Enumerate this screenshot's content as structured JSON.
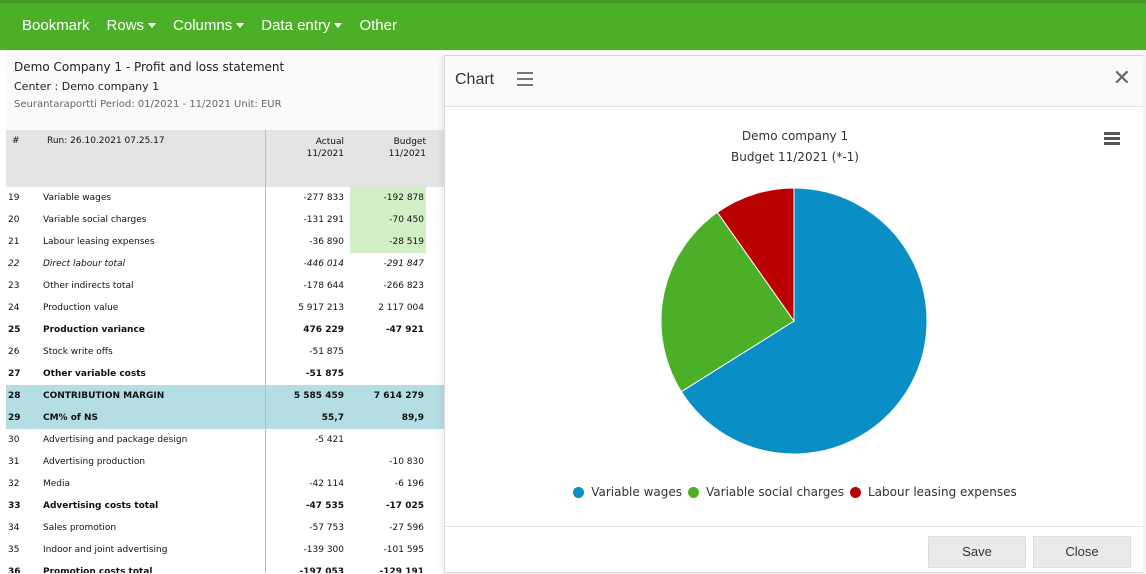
{
  "nav": {
    "items": [
      {
        "label": "Bookmark",
        "dropdown": false
      },
      {
        "label": "Rows",
        "dropdown": true
      },
      {
        "label": "Columns",
        "dropdown": true
      },
      {
        "label": "Data entry",
        "dropdown": true
      },
      {
        "label": "Other",
        "dropdown": false
      }
    ]
  },
  "report": {
    "title": "Demo Company 1 - Profit and loss statement",
    "center": "Center : Demo company 1",
    "period": "Seurantaraportti Period: 01/2021 - 11/2021 Unit: EUR",
    "header": {
      "num": "#",
      "run": "Run: 26.10.2021 07.25.17",
      "actual_line1": "Actual",
      "actual_line2": "11/2021",
      "budget_line1": "Budget",
      "budget_line2": "11/2021"
    },
    "rows": [
      {
        "num": "19",
        "name": "Variable wages",
        "actual": "-277 833",
        "budget": "-192 878",
        "style": "normal",
        "budget_green": true
      },
      {
        "num": "20",
        "name": "Variable social charges",
        "actual": "-131 291",
        "budget": "-70 450",
        "style": "normal",
        "budget_green": true
      },
      {
        "num": "21",
        "name": "Labour leasing expenses",
        "actual": "-36 890",
        "budget": "-28 519",
        "style": "normal",
        "budget_green": true
      },
      {
        "num": "22",
        "name": "Direct labour total",
        "actual": "-446 014",
        "budget": "-291 847",
        "style": "italic",
        "budget_green": false
      },
      {
        "num": "23",
        "name": "Other indirects total",
        "actual": "-178 644",
        "budget": "-266 823",
        "style": "normal",
        "budget_green": false
      },
      {
        "num": "24",
        "name": "Production value",
        "actual": "5 917 213",
        "budget": "2 117 004",
        "style": "normal",
        "budget_green": false
      },
      {
        "num": "25",
        "name": "Production variance",
        "actual": "476 229",
        "budget": "-47 921",
        "style": "bold",
        "budget_green": false
      },
      {
        "num": "26",
        "name": "Stock write offs",
        "actual": "-51 875",
        "budget": "",
        "style": "normal",
        "budget_green": false
      },
      {
        "num": "27",
        "name": "Other variable costs",
        "actual": "-51 875",
        "budget": "",
        "style": "bold",
        "budget_green": false
      },
      {
        "num": "28",
        "name": "CONTRIBUTION MARGIN",
        "actual": "5 585 459",
        "budget": "7 614 279",
        "style": "highlight",
        "budget_green": false
      },
      {
        "num": "29",
        "name": "CM% of NS",
        "actual": "55,7",
        "budget": "89,9",
        "style": "highlight",
        "budget_green": false
      },
      {
        "num": "30",
        "name": "Advertising and package design",
        "actual": "-5 421",
        "budget": "",
        "style": "normal",
        "budget_green": false
      },
      {
        "num": "31",
        "name": "Advertising production",
        "actual": "",
        "budget": "-10 830",
        "style": "normal",
        "budget_green": false
      },
      {
        "num": "32",
        "name": "Media",
        "actual": "-42 114",
        "budget": "-6 196",
        "style": "normal",
        "budget_green": false
      },
      {
        "num": "33",
        "name": "Advertising costs total",
        "actual": "-47 535",
        "budget": "-17 025",
        "style": "bold",
        "budget_green": false
      },
      {
        "num": "34",
        "name": "Sales promotion",
        "actual": "-57 753",
        "budget": "-27 596",
        "style": "normal",
        "budget_green": false
      },
      {
        "num": "35",
        "name": "Indoor and joint advertising",
        "actual": "-139 300",
        "budget": "-101 595",
        "style": "normal",
        "budget_green": false
      },
      {
        "num": "36",
        "name": "Promotion costs total",
        "actual": "-197 053",
        "budget": "-129 191",
        "style": "bold",
        "budget_green": false
      }
    ]
  },
  "modal": {
    "title": "Chart",
    "menu_icon": "hamburger-icon",
    "close_icon": "close-icon",
    "close_glyph": "✕",
    "save_label": "Save",
    "close_label": "Close"
  },
  "chart_data": {
    "type": "pie",
    "title": "Demo company 1",
    "subtitle": "Budget 11/2021 (*-1)",
    "categories": [
      "Variable wages",
      "Variable social charges",
      "Labour leasing expenses"
    ],
    "values": [
      192878,
      70450,
      28519
    ],
    "colors": [
      "#0a8ec6",
      "#4caf28",
      "#bb0000"
    ],
    "legend_position": "bottom"
  }
}
